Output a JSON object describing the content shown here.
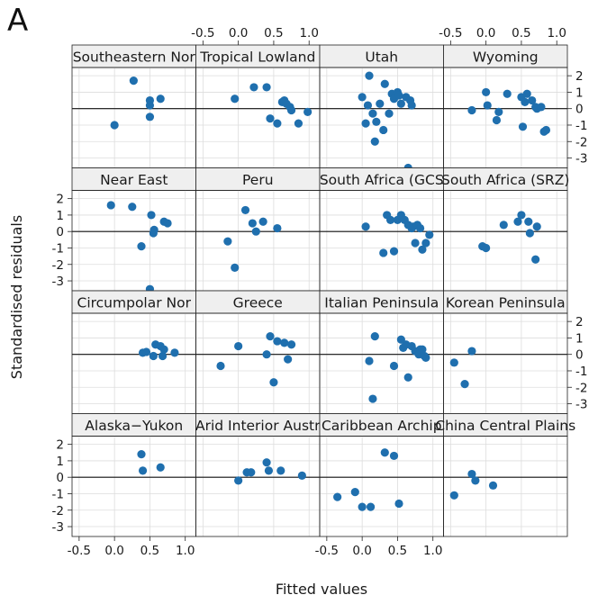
{
  "figure": {
    "panel_letter": "A",
    "xlabel": "Fitted values",
    "ylabel": "Standardised residuals"
  },
  "colors": {
    "point": "#1f6fae",
    "strip": "#efefef",
    "grid": "#dddddd",
    "frame": "#222222",
    "zero_line": "#111111"
  },
  "chart_data": {
    "type": "scatter",
    "layout": {
      "rows": 4,
      "cols": 4,
      "fill_order": "rows-top-to-bottom-left-to-right"
    },
    "xlim": [
      -0.6,
      1.15
    ],
    "ylim": [
      -3.6,
      2.5
    ],
    "x_ticks": [
      -0.5,
      0.0,
      0.5,
      1.0
    ],
    "x_tick_labels": [
      "-0.5",
      "0.0",
      "0.5",
      "1.0"
    ],
    "y_ticks": [
      -3,
      -2,
      -1,
      0,
      1,
      2
    ],
    "y_tick_labels": [
      "-3",
      "-2",
      "-1",
      "0",
      "1",
      "2"
    ],
    "reference_line_y": 0,
    "grid": true,
    "panels": [
      {
        "name": "Southeastern Norway",
        "label": "Southeastern Nor",
        "x": [
          0.0,
          0.27,
          0.5,
          0.5,
          0.5,
          0.65
        ],
        "y": [
          -1.0,
          1.7,
          0.5,
          0.2,
          -0.5,
          0.6
        ]
      },
      {
        "name": "Tropical Lowlands",
        "label": "Tropical Lowland",
        "x": [
          -0.05,
          0.22,
          0.4,
          0.45,
          0.55,
          0.62,
          0.65,
          0.68,
          0.73,
          0.75,
          0.85,
          0.98
        ],
        "y": [
          0.6,
          1.3,
          1.3,
          -0.6,
          -0.9,
          0.4,
          0.5,
          0.3,
          0.1,
          -0.1,
          -0.9,
          -0.2
        ]
      },
      {
        "name": "Utah",
        "label": "Utah",
        "x": [
          0.0,
          0.05,
          0.08,
          0.1,
          0.15,
          0.18,
          0.2,
          0.25,
          0.3,
          0.32,
          0.38,
          0.42,
          0.45,
          0.5,
          0.52,
          0.55,
          0.62,
          0.65,
          0.68,
          0.7
        ],
        "y": [
          0.7,
          -0.9,
          0.2,
          2.0,
          -0.3,
          -2.0,
          -0.8,
          0.3,
          -1.3,
          1.5,
          -0.3,
          0.9,
          0.6,
          1.0,
          0.8,
          0.3,
          0.7,
          -3.6,
          0.5,
          0.2
        ]
      },
      {
        "name": "Wyoming",
        "label": "Wyoming",
        "x": [
          -0.2,
          0.0,
          0.02,
          0.15,
          0.18,
          0.3,
          0.5,
          0.52,
          0.55,
          0.58,
          0.65,
          0.7,
          0.72,
          0.78,
          0.82,
          0.85
        ],
        "y": [
          -0.1,
          1.0,
          0.2,
          -0.7,
          -0.2,
          0.9,
          0.7,
          -1.1,
          0.4,
          0.9,
          0.5,
          0.1,
          0.0,
          0.1,
          -1.4,
          -1.3
        ]
      },
      {
        "name": "Near East",
        "label": "Near East",
        "x": [
          -0.05,
          0.25,
          0.38,
          0.5,
          0.52,
          0.55,
          0.56,
          0.7,
          0.75
        ],
        "y": [
          1.6,
          1.5,
          -0.9,
          -3.5,
          1.0,
          -0.1,
          0.1,
          0.6,
          0.5
        ]
      },
      {
        "name": "Peru",
        "label": "Peru",
        "x": [
          -0.15,
          -0.05,
          0.1,
          0.2,
          0.25,
          0.35,
          0.55
        ],
        "y": [
          -0.6,
          -2.2,
          1.3,
          0.5,
          0.0,
          0.6,
          0.2
        ]
      },
      {
        "name": "South Africa (GCS)",
        "label": "South Africa (GCS",
        "x": [
          0.05,
          0.3,
          0.35,
          0.4,
          0.45,
          0.5,
          0.55,
          0.6,
          0.65,
          0.7,
          0.72,
          0.75,
          0.78,
          0.82,
          0.85,
          0.9,
          0.95
        ],
        "y": [
          0.3,
          -1.3,
          1.0,
          0.7,
          -1.2,
          0.7,
          1.0,
          0.7,
          0.4,
          0.2,
          0.3,
          -0.7,
          0.4,
          0.2,
          -1.1,
          -0.7,
          -0.2
        ]
      },
      {
        "name": "South Africa (SRZ)",
        "label": "South Africa (SRZ)",
        "x": [
          -0.05,
          0.0,
          0.25,
          0.45,
          0.5,
          0.6,
          0.62,
          0.7,
          0.72
        ],
        "y": [
          -0.9,
          -1.0,
          0.4,
          0.6,
          1.0,
          0.6,
          -0.1,
          -1.7,
          0.3
        ]
      },
      {
        "name": "Circumpolar Norway",
        "label": "Circumpolar Nor",
        "x": [
          0.4,
          0.45,
          0.55,
          0.58,
          0.65,
          0.68,
          0.7,
          0.85
        ],
        "y": [
          0.1,
          0.15,
          -0.1,
          0.6,
          0.5,
          -0.1,
          0.3,
          0.1
        ]
      },
      {
        "name": "Greece",
        "label": "Greece",
        "x": [
          -0.25,
          0.0,
          0.4,
          0.45,
          0.5,
          0.55,
          0.65,
          0.7,
          0.75
        ],
        "y": [
          -0.7,
          0.5,
          0.0,
          1.1,
          -1.7,
          0.8,
          0.7,
          -0.3,
          0.6
        ]
      },
      {
        "name": "Italian Peninsula",
        "label": "Italian Peninsula",
        "x": [
          0.1,
          0.15,
          0.18,
          0.45,
          0.55,
          0.58,
          0.62,
          0.65,
          0.7,
          0.75,
          0.8,
          0.82,
          0.85,
          0.88,
          0.9
        ],
        "y": [
          -0.4,
          -2.7,
          1.1,
          -0.7,
          0.9,
          0.4,
          0.6,
          -1.4,
          0.5,
          0.2,
          0.0,
          0.3,
          0.3,
          -0.1,
          -0.2
        ]
      },
      {
        "name": "Korean Peninsula",
        "label": "Korean Peninsula",
        "x": [
          -0.45,
          -0.3,
          -0.2
        ],
        "y": [
          -0.5,
          -1.8,
          0.2
        ]
      },
      {
        "name": "Alaska-Yukon",
        "label": "Alaska−Yukon",
        "x": [
          0.38,
          0.4,
          0.65
        ],
        "y": [
          1.4,
          0.4,
          0.6
        ]
      },
      {
        "name": "Arid Interior Australia",
        "label": "Arid Interior Austr",
        "x": [
          0.0,
          0.12,
          0.18,
          0.4,
          0.43,
          0.6,
          0.9
        ],
        "y": [
          -0.2,
          0.3,
          0.3,
          0.9,
          0.4,
          0.4,
          0.1
        ]
      },
      {
        "name": "Caribbean Archipelago",
        "label": "Caribbean Archip",
        "x": [
          -0.35,
          -0.1,
          0.0,
          0.12,
          0.32,
          0.45,
          0.52
        ],
        "y": [
          -1.2,
          -0.9,
          -1.8,
          -1.8,
          1.5,
          1.3,
          -1.6
        ]
      },
      {
        "name": "China Central Plains",
        "label": "China Central Plains",
        "x": [
          -0.45,
          -0.2,
          -0.15,
          0.1
        ],
        "y": [
          -1.1,
          0.2,
          -0.2,
          -0.5
        ]
      }
    ]
  }
}
